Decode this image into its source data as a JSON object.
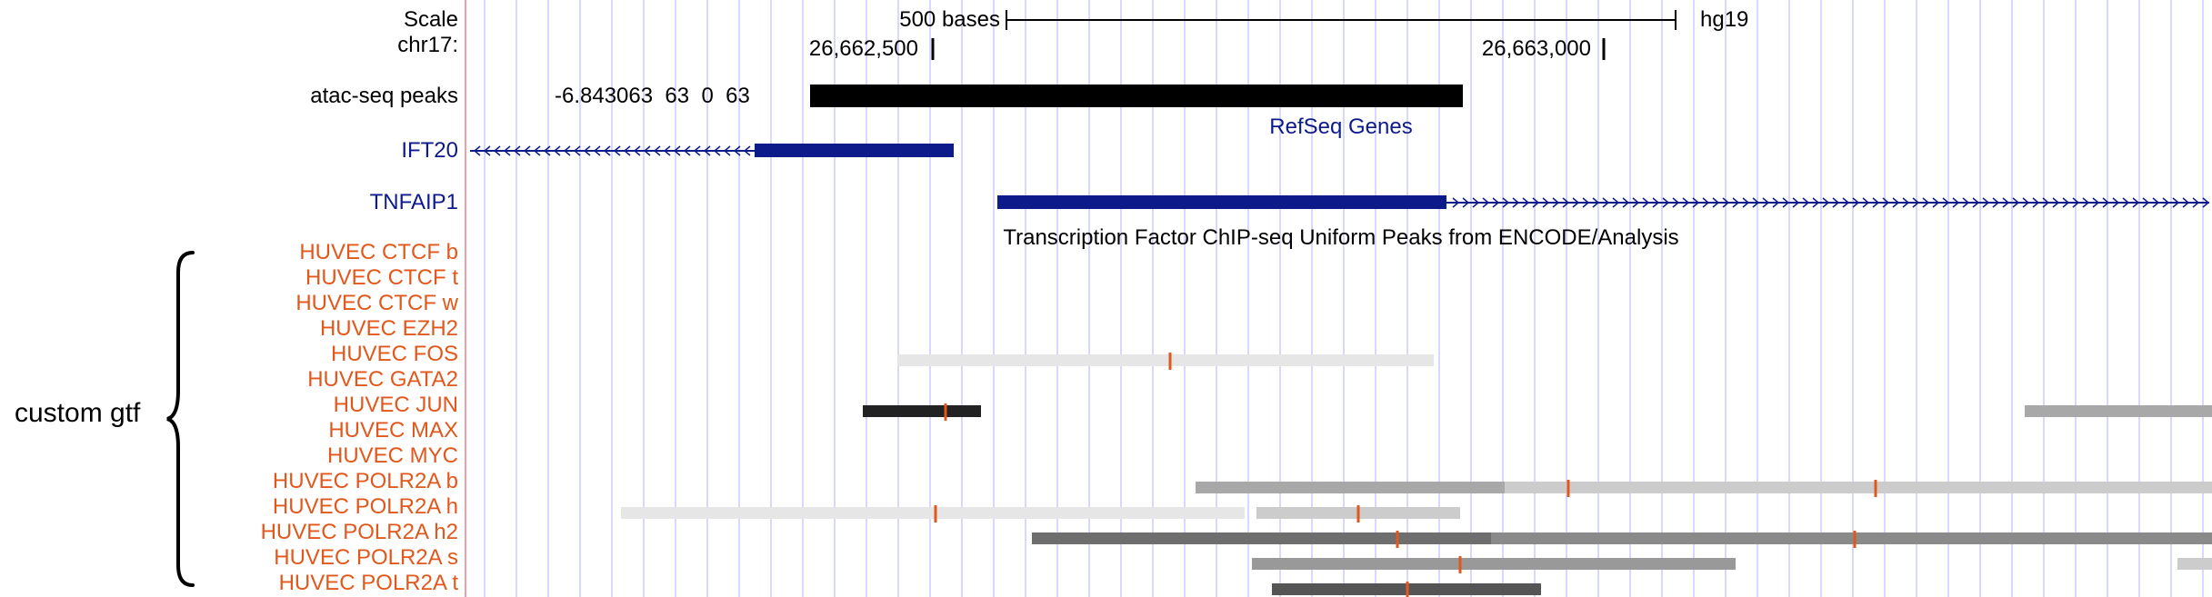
{
  "browser": {
    "scale_label": "Scale",
    "chrom_label": "chr17:",
    "scale_bar_label": "500 bases",
    "assembly": "hg19",
    "positions": [
      "26,662,500",
      "26,663,000"
    ],
    "colors": {
      "grid": "#d8d8ff",
      "divider": "#f4a0a0",
      "gene": "#0d1a8a",
      "label_orange": "#e2581c",
      "tick_orange": "#e2581c"
    }
  },
  "atac": {
    "label": "atac-seq peaks",
    "score_text": "-6.843063  63  0  63"
  },
  "refseq": {
    "title": "RefSeq Genes",
    "genes": [
      {
        "name": "IFT20",
        "strand": "-"
      },
      {
        "name": "TNFAIP1",
        "strand": "+"
      }
    ]
  },
  "tfbs": {
    "title": "Transcription Factor ChIP-seq Uniform Peaks from ENCODE/Analysis",
    "group_label": "custom gtf",
    "tracks": [
      {
        "name": "HUVEC CTCF b"
      },
      {
        "name": "HUVEC CTCF t"
      },
      {
        "name": "HUVEC CTCF w"
      },
      {
        "name": "HUVEC EZH2"
      },
      {
        "name": "HUVEC FOS"
      },
      {
        "name": "HUVEC GATA2"
      },
      {
        "name": "HUVEC JUN"
      },
      {
        "name": "HUVEC MAX"
      },
      {
        "name": "HUVEC MYC"
      },
      {
        "name": "HUVEC POLR2A b"
      },
      {
        "name": "HUVEC POLR2A h"
      },
      {
        "name": "HUVEC POLR2A h2"
      },
      {
        "name": "HUVEC POLR2A s"
      },
      {
        "name": "HUVEC POLR2A t"
      }
    ]
  }
}
